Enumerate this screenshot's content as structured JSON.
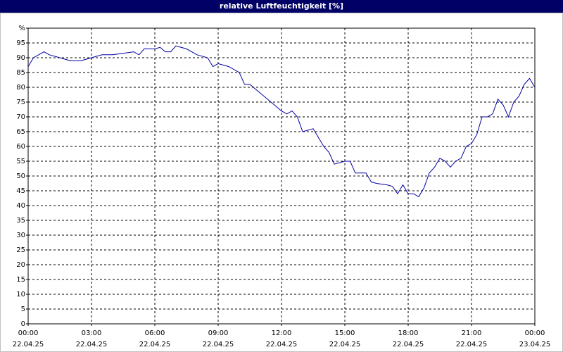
{
  "chart_data": {
    "type": "line",
    "title": "relative Luftfeuchtigkeit [%]",
    "x": [
      0,
      0.25,
      0.5,
      0.75,
      1,
      1.5,
      2,
      2.5,
      3,
      3.5,
      4,
      4.5,
      5,
      5.25,
      5.5,
      6,
      6.25,
      6.5,
      6.75,
      7,
      7.5,
      8,
      8.5,
      8.75,
      9,
      9.5,
      10,
      10.25,
      10.5,
      11,
      11.5,
      12,
      12.25,
      12.5,
      12.75,
      13,
      13.5,
      13.75,
      14,
      14.25,
      14.5,
      15,
      15.25,
      15.5,
      16,
      16.25,
      16.5,
      17,
      17.25,
      17.5,
      17.75,
      18,
      18.25,
      18.5,
      18.75,
      19,
      19.25,
      19.5,
      19.75,
      20,
      20.25,
      20.5,
      20.75,
      21,
      21.25,
      21.5,
      21.75,
      22,
      22.25,
      22.5,
      22.75,
      23,
      23.25,
      23.5,
      23.75,
      24
    ],
    "series": [
      {
        "name": "relative Luftfeuchtigkeit",
        "color": "#0000a0",
        "values": [
          87,
          90,
          91,
          92,
          91,
          90,
          89,
          89,
          90,
          91,
          91,
          91.5,
          92,
          91,
          93,
          93,
          93.5,
          92,
          92,
          94,
          93,
          91,
          90,
          87,
          88,
          87,
          85,
          81,
          81,
          78,
          75,
          72,
          71,
          72,
          70,
          65,
          66,
          63,
          60,
          58,
          54,
          55,
          55,
          51,
          51,
          48,
          47.5,
          47,
          46.5,
          44,
          47,
          44,
          44,
          43,
          46,
          51,
          53,
          56,
          55,
          53,
          55,
          56,
          60,
          61,
          64,
          70,
          70,
          71,
          76,
          74,
          70,
          75,
          77,
          81,
          83,
          80
        ]
      }
    ],
    "xlim": [
      0,
      24
    ],
    "xticks": [
      {
        "value": 0,
        "label": "00:00",
        "date": "22.04.25"
      },
      {
        "value": 3,
        "label": "03:00",
        "date": "22.04.25"
      },
      {
        "value": 6,
        "label": "06:00",
        "date": "22.04.25"
      },
      {
        "value": 9,
        "label": "09:00",
        "date": "22.04.25"
      },
      {
        "value": 12,
        "label": "12:00",
        "date": "22.04.25"
      },
      {
        "value": 15,
        "label": "15:00",
        "date": "22.04.25"
      },
      {
        "value": 18,
        "label": "18:00",
        "date": "22.04.25"
      },
      {
        "value": 21,
        "label": "21:00",
        "date": "22.04.25"
      },
      {
        "value": 24,
        "label": "00:00",
        "date": "23.04.25"
      }
    ],
    "ylim": [
      0,
      100
    ],
    "yticks": [
      0,
      5,
      10,
      15,
      20,
      25,
      30,
      35,
      40,
      45,
      50,
      55,
      60,
      65,
      70,
      75,
      80,
      85,
      90,
      95,
      {
        "value": 100,
        "label": "%"
      }
    ],
    "grid": true
  }
}
